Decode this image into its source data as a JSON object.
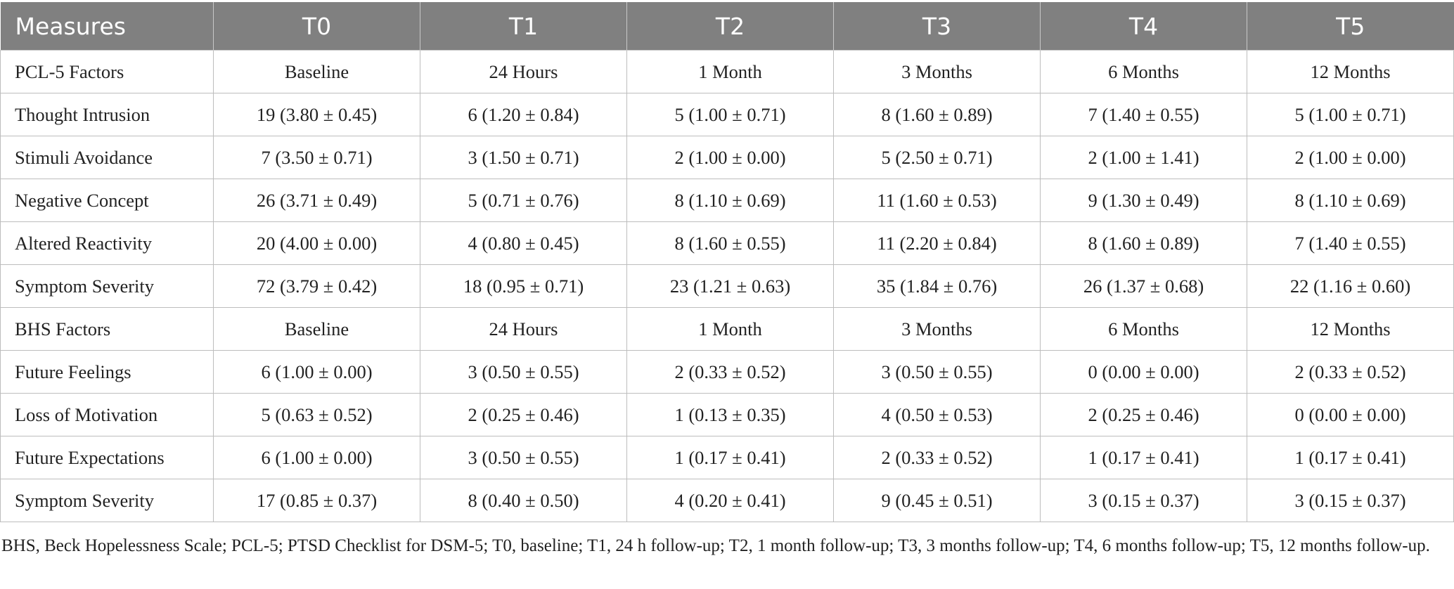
{
  "table": {
    "columns": [
      "Measures",
      "T0",
      "T1",
      "T2",
      "T3",
      "T4",
      "T5"
    ],
    "rows": [
      [
        "PCL-5 Factors",
        "Baseline",
        "24 Hours",
        "1 Month",
        "3 Months",
        "6 Months",
        "12 Months"
      ],
      [
        "Thought Intrusion",
        "19 (3.80 ± 0.45)",
        "6 (1.20 ± 0.84)",
        "5 (1.00 ± 0.71)",
        "8 (1.60 ± 0.89)",
        "7 (1.40 ± 0.55)",
        "5 (1.00 ± 0.71)"
      ],
      [
        "Stimuli Avoidance",
        "7 (3.50 ± 0.71)",
        "3 (1.50 ± 0.71)",
        "2 (1.00 ± 0.00)",
        "5 (2.50 ± 0.71)",
        "2 (1.00 ± 1.41)",
        "2 (1.00 ± 0.00)"
      ],
      [
        "Negative Concept",
        "26 (3.71 ± 0.49)",
        "5 (0.71 ± 0.76)",
        "8 (1.10 ± 0.69)",
        "11 (1.60 ± 0.53)",
        "9 (1.30 ± 0.49)",
        "8 (1.10 ± 0.69)"
      ],
      [
        "Altered Reactivity",
        "20 (4.00 ± 0.00)",
        "4 (0.80 ± 0.45)",
        "8 (1.60 ± 0.55)",
        "11 (2.20 ± 0.84)",
        "8 (1.60 ± 0.89)",
        "7 (1.40 ± 0.55)"
      ],
      [
        "Symptom Severity",
        "72 (3.79 ± 0.42)",
        "18 (0.95 ± 0.71)",
        "23 (1.21 ± 0.63)",
        "35 (1.84 ± 0.76)",
        "26 (1.37 ± 0.68)",
        "22 (1.16 ± 0.60)"
      ],
      [
        "BHS Factors",
        "Baseline",
        "24 Hours",
        "1 Month",
        "3 Months",
        "6 Months",
        "12 Months"
      ],
      [
        "Future Feelings",
        "6 (1.00 ± 0.00)",
        "3 (0.50 ± 0.55)",
        "2 (0.33 ± 0.52)",
        "3 (0.50 ± 0.55)",
        "0 (0.00 ± 0.00)",
        "2 (0.33 ± 0.52)"
      ],
      [
        "Loss of Motivation",
        "5 (0.63 ± 0.52)",
        "2 (0.25 ± 0.46)",
        "1 (0.13 ± 0.35)",
        "4 (0.50 ± 0.53)",
        "2 (0.25 ± 0.46)",
        "0 (0.00 ± 0.00)"
      ],
      [
        "Future Expectations",
        "6 (1.00 ± 0.00)",
        "3 (0.50 ± 0.55)",
        "1 (0.17 ± 0.41)",
        "2 (0.33 ± 0.52)",
        "1 (0.17 ± 0.41)",
        "1 (0.17 ± 0.41)"
      ],
      [
        "Symptom Severity",
        "17 (0.85 ± 0.37)",
        "8 (0.40 ± 0.50)",
        "4 (0.20 ± 0.41)",
        "9 (0.45 ± 0.51)",
        "3 (0.15 ± 0.37)",
        "3 (0.15 ± 0.37)"
      ]
    ]
  },
  "footnote": "BHS, Beck Hopelessness Scale; PCL-5; PTSD Checklist for DSM-5; T0, baseline; T1, 24 h follow-up; T2, 1 month follow-up; T3, 3 months follow-up; T4, 6 months follow-up; T5, 12 months follow-up.",
  "colors": {
    "header_bg": "#808080",
    "header_text": "#ffffff",
    "grid": "#bdbdbd"
  }
}
